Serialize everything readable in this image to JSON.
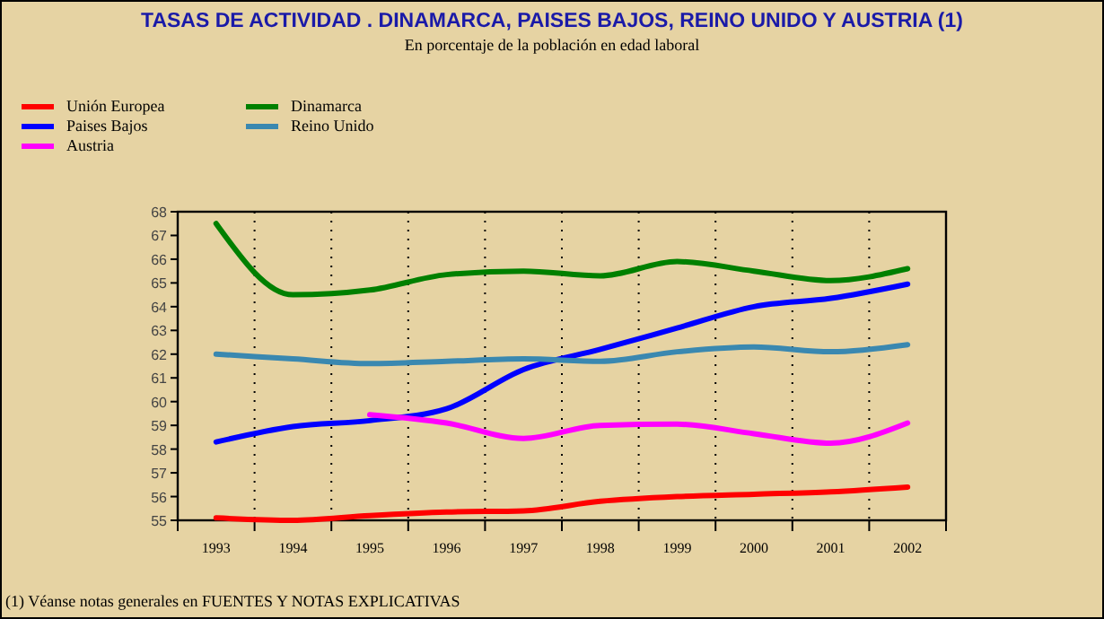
{
  "chart_data": {
    "type": "line",
    "title": "TASAS DE ACTIVIDAD .  DINAMARCA, PAISES BAJOS, REINO UNIDO Y AUSTRIA (1)",
    "subtitle": "En porcentaje de la población en edad laboral",
    "categories": [
      "1993",
      "1994",
      "1995",
      "1996",
      "1997",
      "1998",
      "1999",
      "2000",
      "2001",
      "2002"
    ],
    "series": [
      {
        "name": "Unión Europea",
        "color": "#ff0000",
        "values": [
          55.1,
          55.0,
          55.2,
          55.35,
          55.4,
          55.8,
          56.0,
          56.1,
          56.2,
          56.4
        ]
      },
      {
        "name": "Paises Bajos",
        "color": "#0000ff",
        "values": [
          58.3,
          58.95,
          59.2,
          59.7,
          61.35,
          62.2,
          63.1,
          64.0,
          64.35,
          64.95
        ]
      },
      {
        "name": "Austria",
        "color": "#ff00ff",
        "values": [
          null,
          null,
          59.45,
          59.1,
          58.45,
          59.0,
          59.05,
          58.65,
          58.25,
          59.1
        ]
      },
      {
        "name": "Dinamarca",
        "color": "#008000",
        "values": [
          67.5,
          64.5,
          64.7,
          65.35,
          65.5,
          65.3,
          65.9,
          65.5,
          65.1,
          65.6
        ]
      },
      {
        "name": "Reino Unido",
        "color": "#3a88b0",
        "values": [
          62.0,
          61.8,
          61.6,
          61.7,
          61.8,
          61.7,
          62.1,
          62.3,
          62.1,
          62.4
        ]
      }
    ],
    "ylim": [
      55,
      68
    ],
    "yticks": [
      55,
      56,
      57,
      58,
      59,
      60,
      61,
      62,
      63,
      64,
      65,
      66,
      67,
      68
    ],
    "grid": "x",
    "legend": "top left",
    "marker": "none",
    "line_style": "solid",
    "annotations": [
      "(1) Véanse notas generales en FUENTES Y NOTAS EXPLICATIVAS"
    ]
  }
}
